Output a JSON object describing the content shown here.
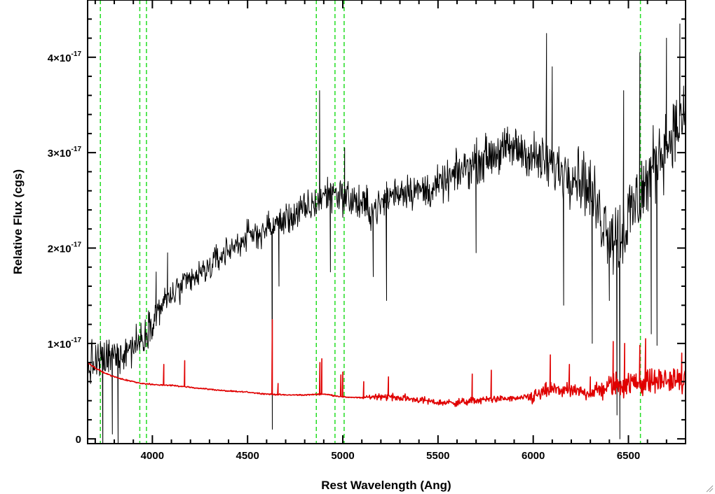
{
  "chart_data": {
    "type": "line",
    "title": "",
    "xlabel": "Rest Wavelength (Ang)",
    "ylabel": "Relative Flux (cgs)",
    "xlim": [
      3660,
      6800
    ],
    "ylim": [
      -0.05,
      4.6
    ],
    "y_unit_exponent": -17,
    "x_ticks": [
      {
        "value": 4000,
        "label": "4000"
      },
      {
        "value": 4500,
        "label": "4500"
      },
      {
        "value": 5000,
        "label": "5000"
      },
      {
        "value": 5500,
        "label": "5500"
      },
      {
        "value": 6000,
        "label": "6000"
      },
      {
        "value": 6500,
        "label": "6500"
      }
    ],
    "y_ticks": [
      {
        "value": 0,
        "label": "0",
        "exponent": ""
      },
      {
        "value": 1,
        "label": "1×10",
        "exponent": "-17"
      },
      {
        "value": 2,
        "label": "2×10",
        "exponent": "-17"
      },
      {
        "value": 3,
        "label": "3×10",
        "exponent": "-17"
      },
      {
        "value": 4,
        "label": "4×10",
        "exponent": "-17"
      }
    ],
    "x_minor_step": 100,
    "y_minor_step": 0.2,
    "vertical_lines": [
      3727,
      3934,
      3969,
      4861,
      4959,
      5007,
      6563
    ],
    "series": [
      {
        "color": "#000000",
        "values": [
          [
            3660,
            0.75
          ],
          [
            3700,
            0.8
          ],
          [
            3750,
            0.82
          ],
          [
            3800,
            0.88
          ],
          [
            3850,
            0.92
          ],
          [
            3900,
            0.98
          ],
          [
            3950,
            1.05
          ],
          [
            4000,
            1.25
          ],
          [
            4050,
            1.4
          ],
          [
            4100,
            1.5
          ],
          [
            4150,
            1.58
          ],
          [
            4200,
            1.65
          ],
          [
            4250,
            1.72
          ],
          [
            4300,
            1.8
          ],
          [
            4350,
            1.9
          ],
          [
            4400,
            1.98
          ],
          [
            4450,
            2.05
          ],
          [
            4500,
            2.12
          ],
          [
            4550,
            2.15
          ],
          [
            4600,
            2.2
          ],
          [
            4650,
            2.25
          ],
          [
            4700,
            2.3
          ],
          [
            4750,
            2.35
          ],
          [
            4800,
            2.4
          ],
          [
            4850,
            2.45
          ],
          [
            4900,
            2.55
          ],
          [
            4950,
            2.6
          ],
          [
            5000,
            2.55
          ],
          [
            5050,
            2.5
          ],
          [
            5100,
            2.45
          ],
          [
            5150,
            2.4
          ],
          [
            5200,
            2.45
          ],
          [
            5250,
            2.55
          ],
          [
            5300,
            2.6
          ],
          [
            5350,
            2.62
          ],
          [
            5400,
            2.6
          ],
          [
            5450,
            2.6
          ],
          [
            5500,
            2.65
          ],
          [
            5550,
            2.7
          ],
          [
            5600,
            2.78
          ],
          [
            5650,
            2.85
          ],
          [
            5700,
            2.9
          ],
          [
            5750,
            2.95
          ],
          [
            5800,
            3.0
          ],
          [
            5850,
            3.02
          ],
          [
            5900,
            3.05
          ],
          [
            5950,
            3.02
          ],
          [
            6000,
            2.95
          ],
          [
            6050,
            2.9
          ],
          [
            6100,
            2.85
          ],
          [
            6150,
            2.82
          ],
          [
            6200,
            2.8
          ],
          [
            6250,
            2.75
          ],
          [
            6300,
            2.6
          ],
          [
            6350,
            2.35
          ],
          [
            6400,
            2.2
          ],
          [
            6450,
            2.1
          ],
          [
            6500,
            2.3
          ],
          [
            6550,
            2.5
          ],
          [
            6600,
            2.7
          ],
          [
            6650,
            2.95
          ],
          [
            6700,
            3.1
          ],
          [
            6750,
            3.25
          ],
          [
            6800,
            3.35
          ]
        ],
        "noise_amplitude": [
          [
            3660,
            0.35
          ],
          [
            3900,
            0.3
          ],
          [
            4000,
            0.25
          ],
          [
            4500,
            0.22
          ],
          [
            5000,
            0.3
          ],
          [
            5500,
            0.28
          ],
          [
            6000,
            0.38
          ],
          [
            6300,
            0.5
          ],
          [
            6500,
            0.7
          ],
          [
            6800,
            0.45
          ]
        ],
        "spikes": [
          [
            3740,
            -0.1
          ],
          [
            3790,
            0.05
          ],
          [
            3820,
            -0.05
          ],
          [
            4020,
            1.75
          ],
          [
            4080,
            1.95
          ],
          [
            4630,
            0.1
          ],
          [
            4665,
            1.6
          ],
          [
            4878,
            3.65
          ],
          [
            4935,
            1.75
          ],
          [
            5010,
            3.05
          ],
          [
            5160,
            1.7
          ],
          [
            5230,
            1.45
          ],
          [
            5700,
            1.95
          ],
          [
            6070,
            4.25
          ],
          [
            6100,
            3.9
          ],
          [
            6160,
            1.4
          ],
          [
            6310,
            1.0
          ],
          [
            6400,
            1.45
          ],
          [
            6440,
            0.25
          ],
          [
            6455,
            0.0
          ],
          [
            6475,
            3.65
          ],
          [
            6560,
            4.05
          ],
          [
            6620,
            1.1
          ],
          [
            6650,
            0.98
          ],
          [
            6700,
            4.2
          ],
          [
            6770,
            4.35
          ]
        ]
      },
      {
        "color": "#e00000",
        "values": [
          [
            3660,
            0.8
          ],
          [
            3700,
            0.74
          ],
          [
            3750,
            0.69
          ],
          [
            3800,
            0.65
          ],
          [
            3850,
            0.62
          ],
          [
            3900,
            0.6
          ],
          [
            3950,
            0.58
          ],
          [
            4000,
            0.57
          ],
          [
            4100,
            0.56
          ],
          [
            4200,
            0.54
          ],
          [
            4300,
            0.52
          ],
          [
            4400,
            0.5
          ],
          [
            4500,
            0.49
          ],
          [
            4600,
            0.47
          ],
          [
            4700,
            0.46
          ],
          [
            4800,
            0.46
          ],
          [
            4900,
            0.47
          ],
          [
            5000,
            0.44
          ],
          [
            5100,
            0.43
          ],
          [
            5200,
            0.45
          ],
          [
            5300,
            0.43
          ],
          [
            5400,
            0.41
          ],
          [
            5500,
            0.38
          ],
          [
            5600,
            0.38
          ],
          [
            5700,
            0.4
          ],
          [
            5800,
            0.42
          ],
          [
            5900,
            0.42
          ],
          [
            6000,
            0.44
          ],
          [
            6100,
            0.52
          ],
          [
            6200,
            0.5
          ],
          [
            6300,
            0.48
          ],
          [
            6400,
            0.55
          ],
          [
            6500,
            0.58
          ],
          [
            6600,
            0.6
          ],
          [
            6700,
            0.62
          ],
          [
            6800,
            0.6
          ]
        ],
        "noise_amplitude": [
          [
            3660,
            0.01
          ],
          [
            5100,
            0.01
          ],
          [
            5200,
            0.06
          ],
          [
            5500,
            0.05
          ],
          [
            5650,
            0.06
          ],
          [
            5950,
            0.04
          ],
          [
            6000,
            0.12
          ],
          [
            6300,
            0.1
          ],
          [
            6400,
            0.2
          ],
          [
            6800,
            0.18
          ]
        ],
        "spikes": [
          [
            4060,
            0.78
          ],
          [
            4170,
            0.82
          ],
          [
            4630,
            1.25
          ],
          [
            4660,
            0.58
          ],
          [
            4880,
            0.8
          ],
          [
            4890,
            0.84
          ],
          [
            4990,
            0.67
          ],
          [
            5000,
            0.7
          ],
          [
            5110,
            0.6
          ],
          [
            5240,
            0.65
          ],
          [
            5680,
            0.68
          ],
          [
            5780,
            0.72
          ],
          [
            6090,
            0.88
          ],
          [
            6190,
            0.78
          ],
          [
            6300,
            0.65
          ],
          [
            6420,
            1.02
          ],
          [
            6480,
            1.0
          ],
          [
            6560,
            0.98
          ],
          [
            6590,
            1.05
          ],
          [
            6780,
            0.9
          ]
        ]
      }
    ]
  }
}
